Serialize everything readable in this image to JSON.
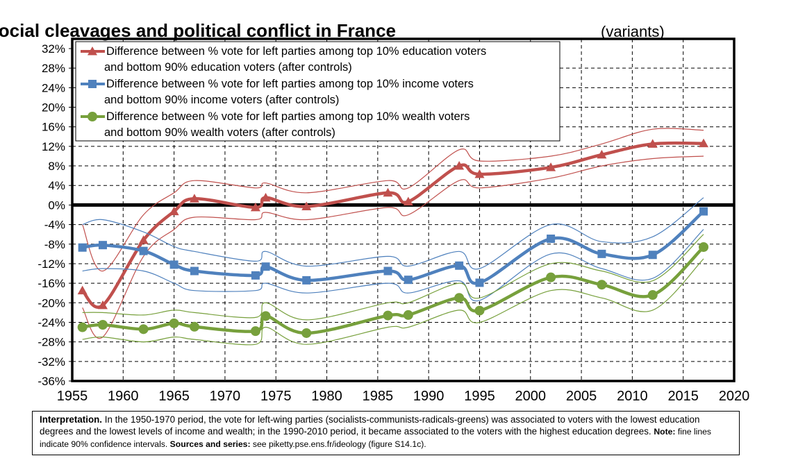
{
  "chart_data": {
    "type": "line",
    "title": "Social cleavages and political conflict in France",
    "subtitle": "(variants)",
    "xlim": [
      1955,
      2020
    ],
    "ylim": [
      -36,
      32
    ],
    "x_ticks": [
      "1955",
      "1960",
      "1965",
      "1970",
      "1975",
      "1980",
      "1985",
      "1990",
      "1995",
      "2000",
      "2005",
      "2010",
      "2015",
      "2020"
    ],
    "y_ticks": [
      "32%",
      "28%",
      "24%",
      "20%",
      "16%",
      "12%",
      "8%",
      "4%",
      "0%",
      "-4%",
      "-8%",
      "-12%",
      "-16%",
      "-20%",
      "-24%",
      "-28%",
      "-32%",
      "-36%"
    ],
    "grid": true,
    "legend_position": "top-left",
    "series": [
      {
        "name": "Difference between % vote for left parties among top 10% education voters and bottom 90% education voters (after controls)",
        "legend_lines": [
          "Difference between % vote for left parties among top 10% education voters",
          "and bottom 90% education voters (after controls)"
        ],
        "color": "#c0504d",
        "marker": "triangle",
        "x": [
          1956,
          1958,
          1962,
          1965,
          1967,
          1973,
          1974,
          1978,
          1986,
          1988,
          1993,
          1995,
          2002,
          2007,
          2012,
          2017
        ],
        "y": [
          -17.5,
          -20.5,
          -7.2,
          -1.3,
          1.3,
          -0.5,
          1.5,
          -0.3,
          2.5,
          0.7,
          8.0,
          6.3,
          7.7,
          10.3,
          12.5,
          12.6
        ],
        "ci_upper": [
          -4.0,
          -13.5,
          -2.0,
          2.5,
          5.0,
          3.5,
          4.5,
          2.5,
          5.0,
          3.5,
          11.3,
          9.0,
          10.0,
          12.5,
          15.5,
          15.3
        ],
        "ci_lower": [
          -21.0,
          -27.0,
          -10.5,
          -5.0,
          -2.5,
          -3.0,
          -1.5,
          -3.0,
          -0.5,
          -2.0,
          5.0,
          3.5,
          5.5,
          8.0,
          9.5,
          10.0
        ]
      },
      {
        "name": "Difference between % vote for left parties among top 10% income voters and bottom 90% income voters (after controls)",
        "legend_lines": [
          "Difference between % vote for left parties among top 10% income voters",
          "and bottom 90% income voters (after controls)"
        ],
        "color": "#4f81bd",
        "marker": "square",
        "x": [
          1956,
          1958,
          1962,
          1965,
          1967,
          1973,
          1974,
          1978,
          1986,
          1988,
          1993,
          1995,
          2002,
          2007,
          2012,
          2017
        ],
        "y": [
          -8.7,
          -8.2,
          -9.4,
          -12.2,
          -13.5,
          -14.4,
          -12.6,
          -15.4,
          -13.5,
          -15.3,
          -12.4,
          -15.9,
          -6.9,
          -10.0,
          -10.2,
          -1.3
        ],
        "ci_upper": [
          -4.0,
          -3.0,
          -5.5,
          -8.5,
          -9.5,
          -11.5,
          -9.5,
          -12.5,
          -10.5,
          -12.5,
          -9.5,
          -13.0,
          -4.0,
          -7.5,
          -6.5,
          1.5
        ],
        "ci_lower": [
          -13.5,
          -13.0,
          -13.5,
          -16.0,
          -17.5,
          -17.5,
          -16.0,
          -18.0,
          -16.0,
          -18.0,
          -15.5,
          -19.5,
          -10.0,
          -13.0,
          -15.0,
          -5.0
        ]
      },
      {
        "name": "Difference between % vote for left parties among top 10% wealth voters and bottom 90% wealth voters (after controls)",
        "legend_lines": [
          "Difference between % vote for left parties among top 10% wealth voters",
          "and bottom 90% wealth voters (after controls)"
        ],
        "color": "#77a03c",
        "marker": "circle",
        "x": [
          1956,
          1958,
          1962,
          1965,
          1967,
          1973,
          1974,
          1978,
          1986,
          1988,
          1993,
          1995,
          2002,
          2007,
          2012,
          2017
        ],
        "y": [
          -25.0,
          -24.5,
          -25.4,
          -24.2,
          -24.9,
          -25.8,
          -22.7,
          -26.2,
          -22.6,
          -22.5,
          -19.0,
          -21.6,
          -14.8,
          -16.3,
          -18.4,
          -8.6
        ],
        "ci_upper": [
          -22.0,
          -22.0,
          -22.5,
          -21.5,
          -22.0,
          -23.0,
          -20.0,
          -23.5,
          -20.0,
          -20.0,
          -16.0,
          -19.0,
          -12.0,
          -13.5,
          -15.5,
          -6.0
        ],
        "ci_lower": [
          -27.5,
          -27.0,
          -28.0,
          -27.0,
          -27.5,
          -28.5,
          -25.0,
          -28.5,
          -25.0,
          -25.0,
          -21.5,
          -24.0,
          -17.5,
          -19.0,
          -21.5,
          -11.0
        ]
      }
    ]
  },
  "note": {
    "interp_label": "Interpretation.",
    "interp_text": " In the 1950-1970 period, the vote for left-wing parties (socialists-communists-radicals-greens) was associated to voters with the lowest education degrees and the lowest levels of income and wealth; in the 1990-2010 period, it became associated to the voters with the highest education degrees. ",
    "note_label": "Note:",
    "note_text": " fine lines indicate 90% confidence intervals. ",
    "sources_label": "Sources and series:",
    "sources_text": " see piketty.pse.ens.fr/ideology (figure S14.1c)."
  }
}
